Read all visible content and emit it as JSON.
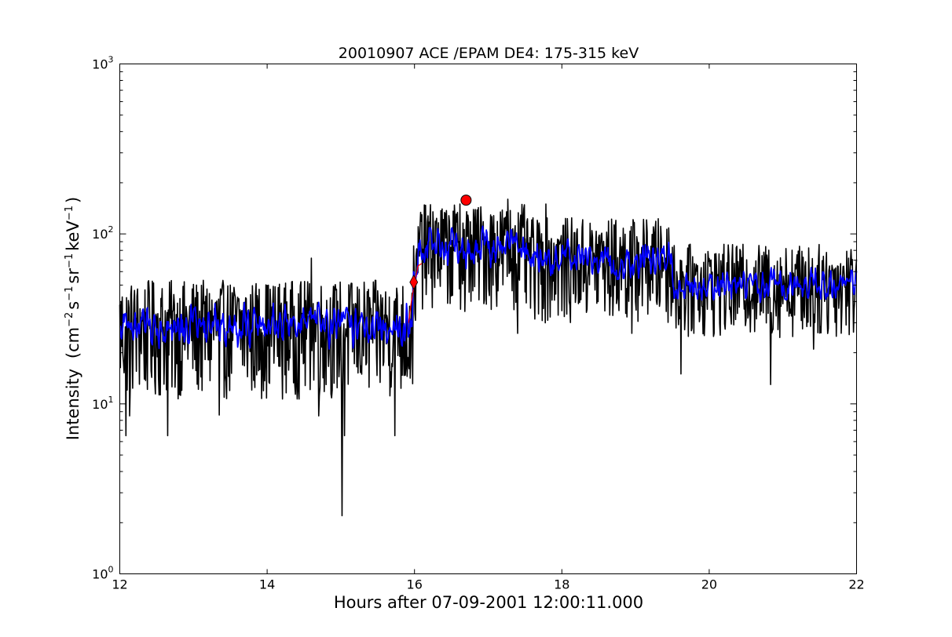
{
  "chart_data": {
    "type": "line",
    "title": "20010907 ACE /EPAM DE4: 175-315 keV",
    "xlabel": "Hours after 07-09-2001 12:00:11.000",
    "ylabel": {
      "text": "Intensity",
      "unit": "(cm",
      "sup1": "−2",
      "s": "s",
      "sup2": "−1",
      "sr": "sr",
      "sup3": "−1",
      "kev": "keV",
      "sup4": "−1",
      "close": ")"
    },
    "xlim": [
      12,
      22
    ],
    "ylim": [
      1,
      1000
    ],
    "yscale": "log",
    "grid": false,
    "x_ticks": [
      {
        "value": 12,
        "label": "12"
      },
      {
        "value": 14,
        "label": "14"
      },
      {
        "value": 16,
        "label": "16"
      },
      {
        "value": 18,
        "label": "18"
      },
      {
        "value": 20,
        "label": "20"
      },
      {
        "value": 22,
        "label": "22"
      }
    ],
    "y_ticks": [
      {
        "value": 1,
        "base": "10",
        "exp": "0"
      },
      {
        "value": 10,
        "base": "10",
        "exp": "1"
      },
      {
        "value": 100,
        "base": "10",
        "exp": "2"
      },
      {
        "value": 1000,
        "base": "10",
        "exp": "3"
      }
    ],
    "series": [
      {
        "color": "#000000",
        "style": "raw",
        "segments": [
          {
            "x_start": 12.0,
            "x_end": 15.98,
            "base": 30,
            "noise_up": 0.25,
            "noise_down": 0.45
          },
          {
            "x_start": 15.98,
            "x_end": 16.05,
            "base": 55,
            "noise_up": 0.2,
            "noise_down": 0.3
          },
          {
            "x_start": 16.05,
            "x_end": 17.5,
            "base": 90,
            "noise_up": 0.22,
            "noise_down": 0.4
          },
          {
            "x_start": 17.5,
            "x_end": 19.5,
            "base": 75,
            "noise_up": 0.22,
            "noise_down": 0.4
          },
          {
            "x_start": 19.5,
            "x_end": 22.0,
            "base": 55,
            "noise_up": 0.2,
            "noise_down": 0.35
          }
        ],
        "dips": [
          {
            "x": 12.08,
            "y": 6.5
          },
          {
            "x": 12.13,
            "y": 8.5
          },
          {
            "x": 12.65,
            "y": 6.5
          },
          {
            "x": 13.35,
            "y": 8.6
          },
          {
            "x": 14.7,
            "y": 8.5
          },
          {
            "x": 15.02,
            "y": 2.2
          },
          {
            "x": 15.05,
            "y": 6.5
          },
          {
            "x": 15.73,
            "y": 6.5
          },
          {
            "x": 16.68,
            "y": 35
          },
          {
            "x": 17.4,
            "y": 26
          },
          {
            "x": 18.95,
            "y": 26
          },
          {
            "x": 19.62,
            "y": 15
          },
          {
            "x": 20.83,
            "y": 13
          },
          {
            "x": 21.42,
            "y": 21
          }
        ],
        "peaks": [
          {
            "x": 14.6,
            "y": 72
          },
          {
            "x": 16.25,
            "y": 135
          },
          {
            "x": 16.62,
            "y": 150
          },
          {
            "x": 17.27,
            "y": 160
          },
          {
            "x": 17.78,
            "y": 150
          }
        ]
      },
      {
        "color": "#0000ff",
        "style": "smoothed",
        "segments": [
          {
            "x_start": 12.0,
            "x_end": 15.98,
            "base": 30,
            "noise_up": 0.15,
            "noise_down": 0.2
          },
          {
            "x_start": 15.98,
            "x_end": 16.05,
            "base": 55,
            "noise_up": 0.1,
            "noise_down": 0.15
          },
          {
            "x_start": 16.05,
            "x_end": 17.5,
            "base": 88,
            "noise_up": 0.13,
            "noise_down": 0.18
          },
          {
            "x_start": 17.5,
            "x_end": 19.5,
            "base": 72,
            "noise_up": 0.13,
            "noise_down": 0.18
          },
          {
            "x_start": 19.5,
            "x_end": 22.0,
            "base": 52,
            "noise_up": 0.12,
            "noise_down": 0.16
          }
        ]
      }
    ],
    "markers": [
      {
        "shape": "diamond",
        "x": 15.99,
        "y": 52,
        "color": "#ff0000"
      },
      {
        "shape": "circle",
        "x": 16.7,
        "y": 158,
        "color": "#ff0000"
      }
    ],
    "onset_fit": {
      "color": "#ff0000",
      "points": [
        [
          15.92,
          30
        ],
        [
          15.95,
          38
        ],
        [
          16.0,
          52
        ],
        [
          16.05,
          65
        ],
        [
          16.1,
          67
        ]
      ]
    }
  }
}
